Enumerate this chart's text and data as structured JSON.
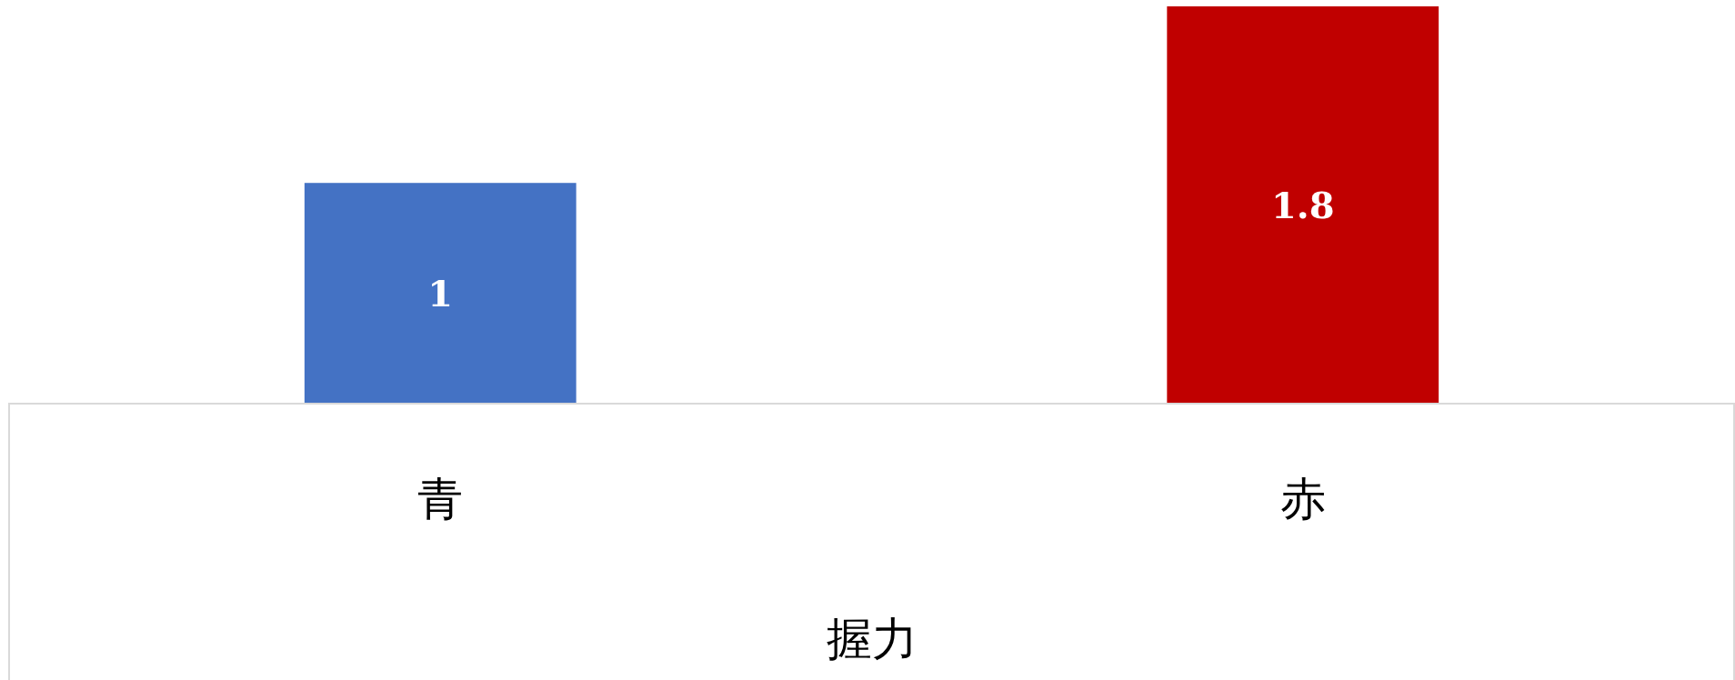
{
  "chart_data": {
    "type": "bar",
    "categories": [
      "青",
      "赤"
    ],
    "xlabel": "握力",
    "values": [
      1,
      1.8
    ],
    "colors": [
      "#4472c4",
      "#c00000"
    ],
    "data_labels": true
  }
}
